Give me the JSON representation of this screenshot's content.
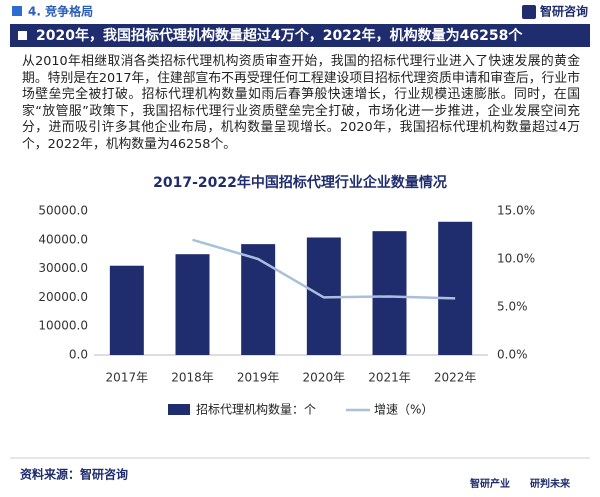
{
  "header": {
    "section": "4. 竞争格局",
    "logo": "智研咨询"
  },
  "banner": "2020年，我国招标代理机构数量超过4万个，2022年，机构数量为46258个",
  "paragraph": "从2010年相继取消各类招标代理机构资质审查开始，我国的招标代理行业进入了快速发展的黄金期。特别是在2017年，住建部宣布不再受理任何工程建设项目招标代理资质申请和审查后，行业市场壁垒完全被打破。招标代理机构数量如雨后春笋般快速增长，行业规模迅速膨胀。同时，在国家“放管服”政策下，我国招标代理行业资质壁垒完全打破，市场化进一步推进，企业发展空间充分，进而吸引许多其他企业布局，机构数量呈现增长。2020年，我国招标代理机构数量超过4万个，2022年，机构数量为46258个。",
  "chart_data": {
    "type": "bar",
    "title": "2017-2022年中国招标代理行业企业数量情况",
    "categories": [
      "2017年",
      "2018年",
      "2019年",
      "2020年",
      "2021年",
      "2022年"
    ],
    "series": [
      {
        "name": "招标代理机构数量：个",
        "type": "bar",
        "color": "#1f2d6e",
        "values": [
          31000,
          35000,
          38500,
          40800,
          43000,
          46258
        ]
      },
      {
        "name": "增速（%）",
        "type": "line",
        "axis": "y2",
        "color": "#a9c0dc",
        "values": [
          null,
          12.0,
          10.0,
          6.0,
          6.1,
          5.9
        ]
      }
    ],
    "ylim": [
      0,
      50000
    ],
    "yticks": [
      {
        "value": 0,
        "label": "0.0"
      },
      {
        "value": 10000,
        "label": "10000.0"
      },
      {
        "value": 20000,
        "label": "20000.0"
      },
      {
        "value": 30000,
        "label": "30000.0"
      },
      {
        "value": 40000,
        "label": "40000.0"
      },
      {
        "value": 50000,
        "label": "50000.0"
      }
    ],
    "y2lim": [
      0,
      15
    ],
    "y2ticks": [
      {
        "value": 0,
        "label": "0.0%"
      },
      {
        "value": 5,
        "label": "5.0%"
      },
      {
        "value": 10,
        "label": "10.0%"
      },
      {
        "value": 15,
        "label": "15.0%"
      }
    ],
    "grid": false,
    "legend": "bottom"
  },
  "footer": {
    "source": "资料来源：智研咨询",
    "logo_left": "智研产业",
    "logo_right": "研判未来"
  }
}
